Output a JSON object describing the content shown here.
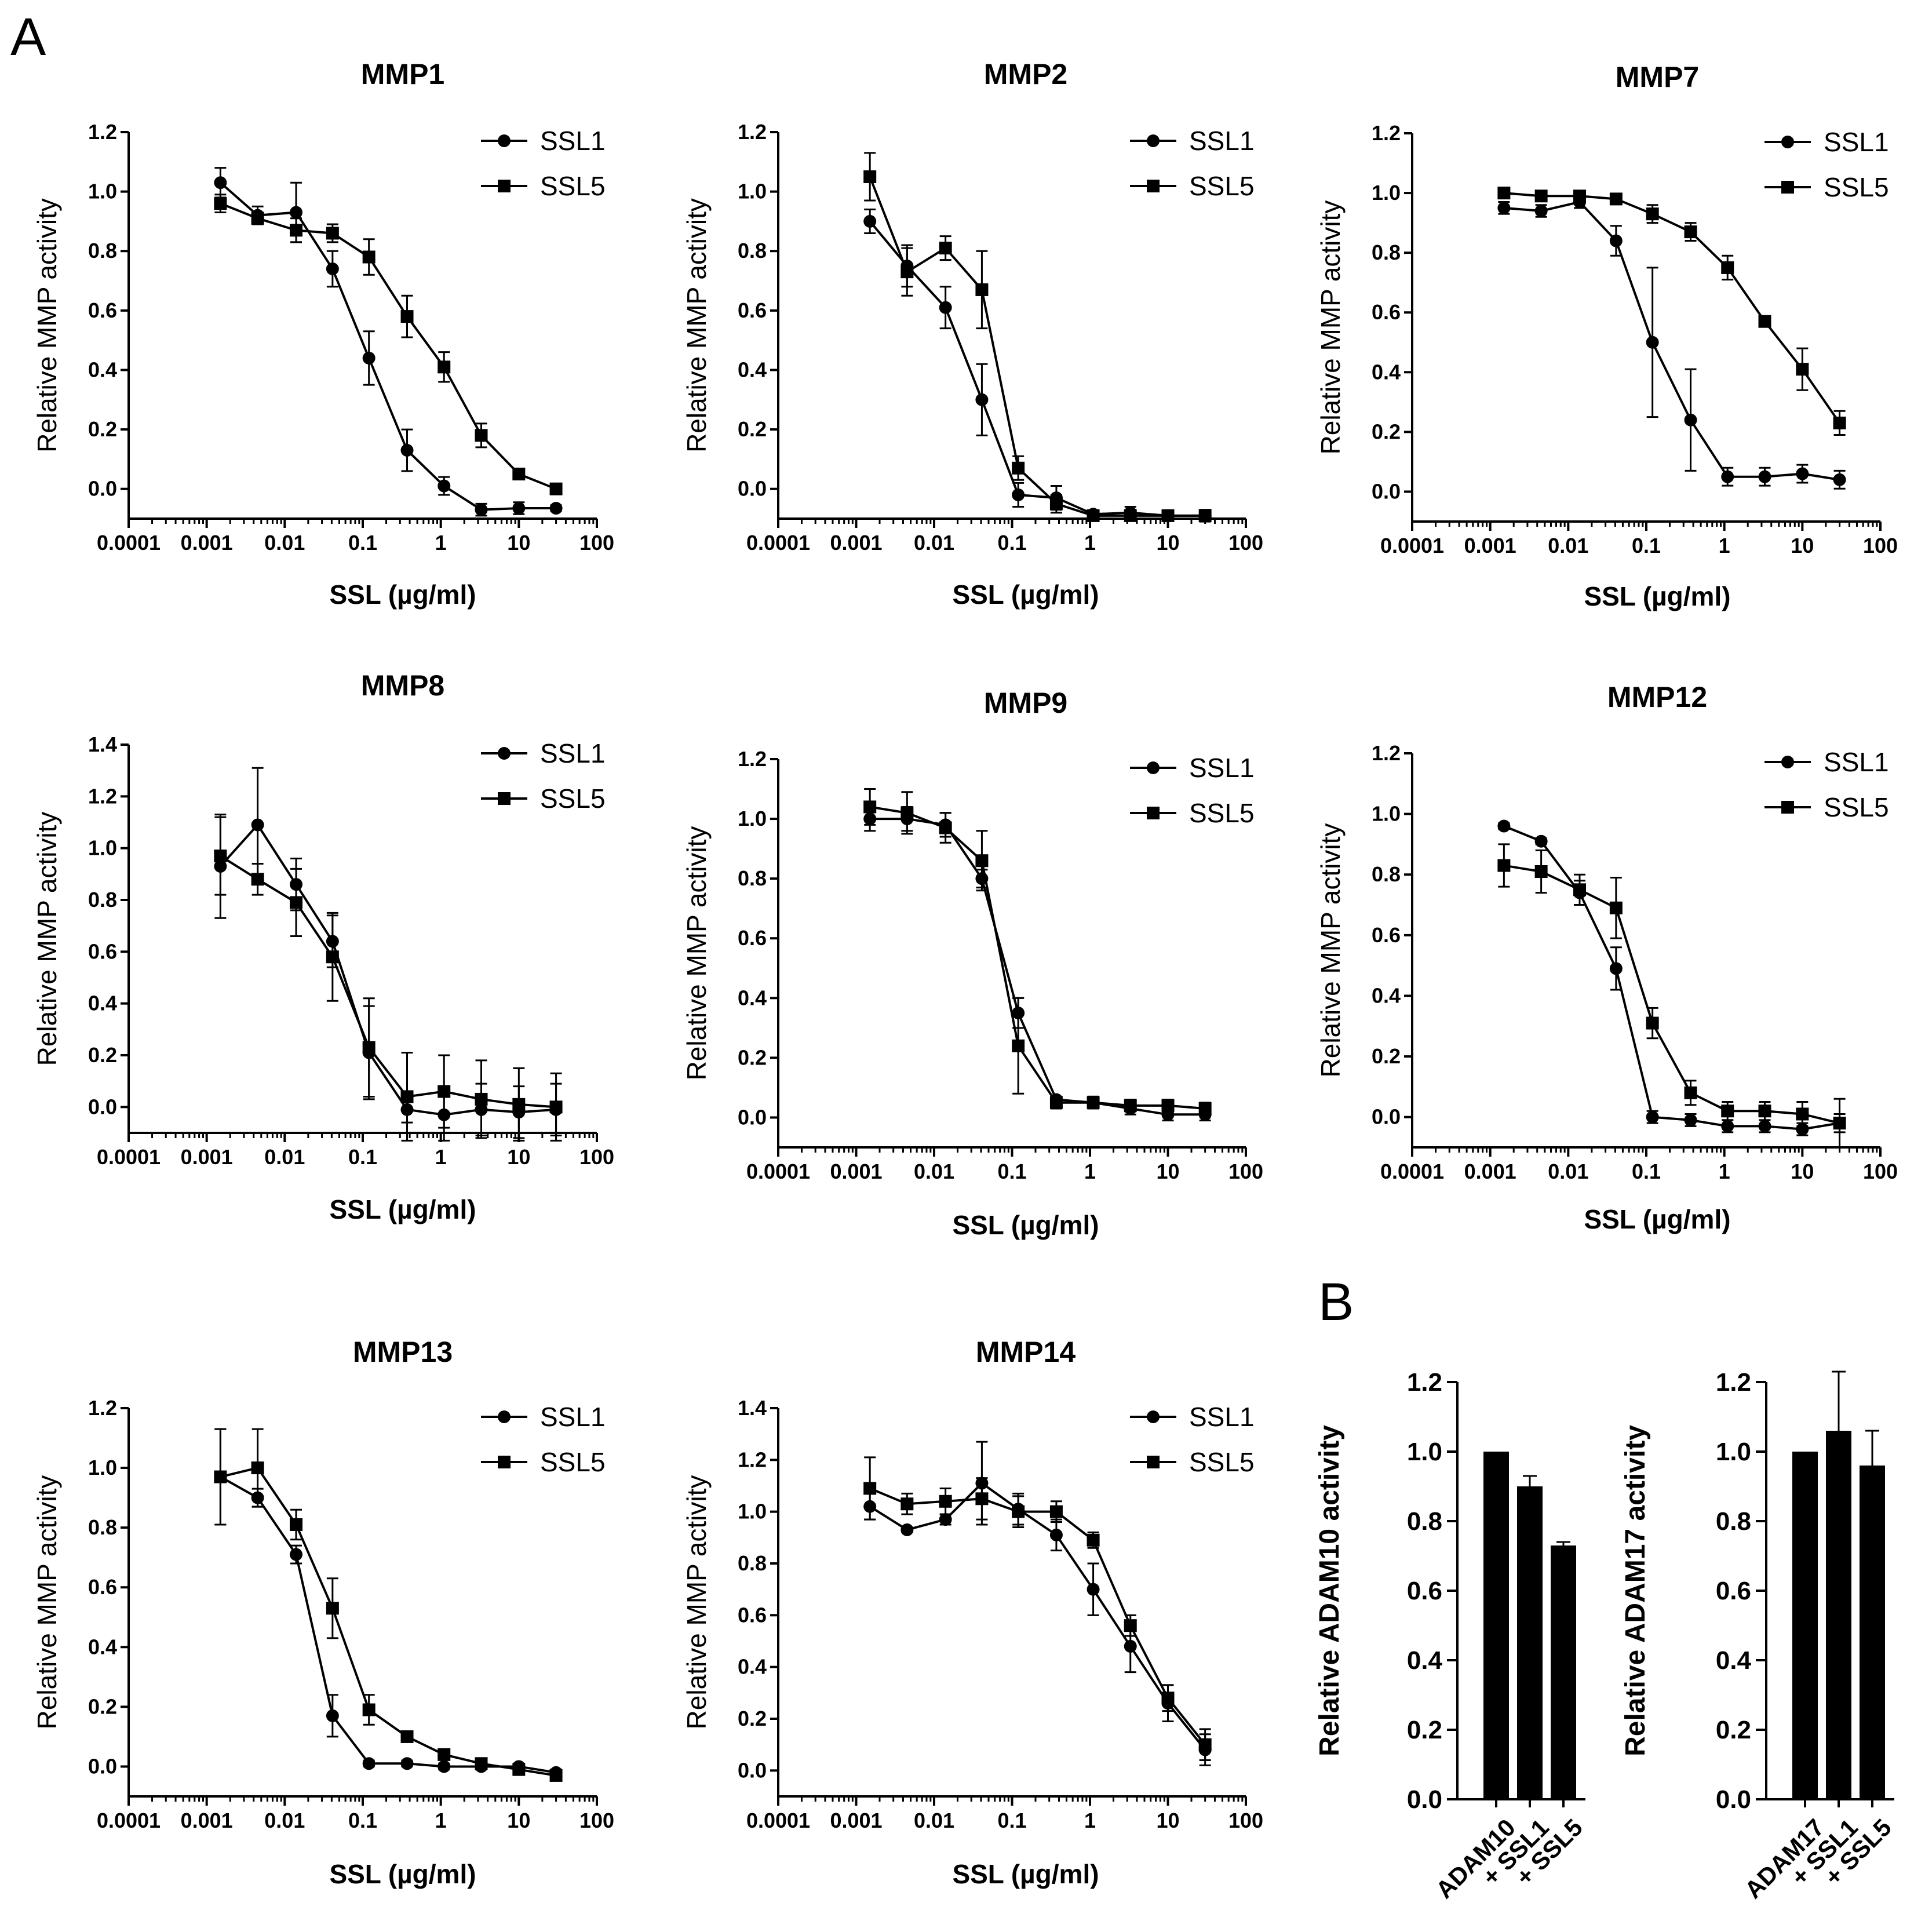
{
  "labels": {
    "panel_a": "A",
    "panel_b": "B"
  },
  "chart_data": [
    {
      "type": "line",
      "title": "MMP1",
      "xlabel": "SSL (µg/ml)",
      "ylabel": "Relative MMP activity",
      "xscale": "log",
      "xlim": [
        0.0001,
        100
      ],
      "ylim": [
        -0.1,
        1.2
      ],
      "yticks": [
        "1.2",
        "1.0",
        "0.8",
        "0.6",
        "0.4",
        "0.2",
        "0.0"
      ],
      "xticks": [
        "0.0001",
        "0.001",
        "0.01",
        "0.1",
        "1",
        "10",
        "100"
      ],
      "legend": "top-right",
      "x": [
        0.0015,
        0.0045,
        0.014,
        0.041,
        0.12,
        0.37,
        1.1,
        3.3,
        10,
        30
      ],
      "series": [
        {
          "name": "SSL1",
          "marker": "circle",
          "values": [
            1.03,
            0.92,
            0.93,
            0.74,
            0.44,
            0.13,
            0.01,
            -0.07,
            -0.065,
            -0.065
          ],
          "errors": [
            0.05,
            0.03,
            0.1,
            0.06,
            0.09,
            0.07,
            0.03,
            0.02,
            0.02,
            0.01
          ]
        },
        {
          "name": "SSL5",
          "marker": "square",
          "values": [
            0.96,
            0.91,
            0.87,
            0.86,
            0.78,
            0.58,
            0.41,
            0.18,
            0.05,
            0.0
          ],
          "errors": [
            0.03,
            0.02,
            0.04,
            0.03,
            0.06,
            0.07,
            0.05,
            0.04,
            0.01,
            0.01
          ]
        }
      ]
    },
    {
      "type": "line",
      "title": "MMP2",
      "xlabel": "SSL (µg/ml)",
      "ylabel": "Relative MMP activity",
      "xscale": "log",
      "xlim": [
        0.0001,
        100
      ],
      "ylim": [
        -0.1,
        1.2
      ],
      "yticks": [
        "1.2",
        "1.0",
        "0.8",
        "0.6",
        "0.4",
        "0.2",
        "0.0"
      ],
      "xticks": [
        "0.0001",
        "0.001",
        "0.01",
        "0.1",
        "1",
        "10",
        "100"
      ],
      "legend": "top-right",
      "x": [
        0.0015,
        0.0045,
        0.014,
        0.041,
        0.12,
        0.37,
        1.1,
        3.3,
        10,
        30
      ],
      "series": [
        {
          "name": "SSL1",
          "marker": "circle",
          "values": [
            0.9,
            0.75,
            0.61,
            0.3,
            -0.02,
            -0.03,
            -0.085,
            -0.08,
            -0.09,
            -0.09
          ],
          "errors": [
            0.04,
            0.07,
            0.07,
            0.12,
            0.04,
            0.04,
            0.01,
            0.02,
            0.01,
            0.02
          ]
        },
        {
          "name": "SSL5",
          "marker": "square",
          "values": [
            1.05,
            0.73,
            0.81,
            0.67,
            0.07,
            -0.05,
            -0.09,
            -0.09,
            -0.09,
            -0.09
          ],
          "errors": [
            0.08,
            0.08,
            0.04,
            0.13,
            0.04,
            0.03,
            0.01,
            0.01,
            0.01,
            0.01
          ]
        }
      ]
    },
    {
      "type": "line",
      "title": "MMP7",
      "xlabel": "SSL (µg/ml)",
      "ylabel": "Relative MMP activity",
      "xscale": "log",
      "xlim": [
        0.0001,
        100
      ],
      "ylim": [
        -0.1,
        1.2
      ],
      "yticks": [
        "1.2",
        "1.0",
        "0.8",
        "0.6",
        "0.4",
        "0.2",
        "0.0"
      ],
      "xticks": [
        "0.0001",
        "0.001",
        "0.01",
        "0.1",
        "1",
        "10",
        "100"
      ],
      "legend": "top-right",
      "x": [
        0.0015,
        0.0045,
        0.014,
        0.041,
        0.12,
        0.37,
        1.1,
        3.3,
        10,
        30
      ],
      "series": [
        {
          "name": "SSL1",
          "marker": "circle",
          "values": [
            0.95,
            0.94,
            0.97,
            0.84,
            0.5,
            0.24,
            0.05,
            0.05,
            0.06,
            0.04
          ],
          "errors": [
            0.02,
            0.02,
            0.02,
            0.05,
            0.25,
            0.17,
            0.03,
            0.03,
            0.03,
            0.03
          ]
        },
        {
          "name": "SSL5",
          "marker": "square",
          "values": [
            1.0,
            0.99,
            0.99,
            0.98,
            0.93,
            0.87,
            0.75,
            0.57,
            0.41,
            0.23
          ],
          "errors": [
            0.01,
            0.01,
            0.01,
            0.01,
            0.03,
            0.03,
            0.04,
            0.01,
            0.07,
            0.04
          ]
        }
      ]
    },
    {
      "type": "line",
      "title": "MMP8",
      "xlabel": "SSL (µg/ml)",
      "ylabel": "Relative MMP activity",
      "xscale": "log",
      "xlim": [
        0.0001,
        100
      ],
      "ylim": [
        -0.1,
        1.4
      ],
      "yticks": [
        "1.4",
        "1.2",
        "1.0",
        "0.8",
        "0.6",
        "0.4",
        "0.2",
        "0.0"
      ],
      "xticks": [
        "0.0001",
        "0.001",
        "0.01",
        "0.1",
        "1",
        "10",
        "100"
      ],
      "legend": "top-right",
      "x": [
        0.0015,
        0.0045,
        0.014,
        0.041,
        0.12,
        0.37,
        1.1,
        3.3,
        10,
        30
      ],
      "series": [
        {
          "name": "SSL1",
          "marker": "circle",
          "values": [
            0.93,
            1.09,
            0.86,
            0.64,
            0.21,
            -0.01,
            -0.03,
            -0.01,
            -0.02,
            -0.01
          ],
          "errors": [
            0.2,
            0.22,
            0.1,
            0.1,
            0.18,
            0.05,
            0.1,
            0.1,
            0.1,
            0.1
          ]
        },
        {
          "name": "SSL5",
          "marker": "square",
          "values": [
            0.97,
            0.88,
            0.79,
            0.58,
            0.23,
            0.04,
            0.06,
            0.03,
            0.01,
            0.0
          ],
          "errors": [
            0.15,
            0.06,
            0.13,
            0.17,
            0.19,
            0.17,
            0.14,
            0.15,
            0.14,
            0.13
          ]
        }
      ]
    },
    {
      "type": "line",
      "title": "MMP9",
      "xlabel": "SSL (µg/ml)",
      "ylabel": "Relative MMP activity",
      "xscale": "log",
      "xlim": [
        0.0001,
        100
      ],
      "ylim": [
        -0.1,
        1.2
      ],
      "yticks": [
        "1.2",
        "1.0",
        "0.8",
        "0.6",
        "0.4",
        "0.2",
        "0.0"
      ],
      "xticks": [
        "0.0001",
        "0.001",
        "0.01",
        "0.1",
        "1",
        "10",
        "100"
      ],
      "legend": "top-right",
      "x": [
        0.0015,
        0.0045,
        0.014,
        0.041,
        0.12,
        0.37,
        1.1,
        3.3,
        10,
        30
      ],
      "series": [
        {
          "name": "SSL1",
          "marker": "circle",
          "values": [
            1.0,
            1.0,
            0.98,
            0.8,
            0.35,
            0.06,
            0.05,
            0.03,
            0.01,
            0.01
          ],
          "errors": [
            0.04,
            0.04,
            0.04,
            0.03,
            0.05,
            0.01,
            0.02,
            0.02,
            0.02,
            0.02
          ]
        },
        {
          "name": "SSL5",
          "marker": "square",
          "values": [
            1.04,
            1.02,
            0.97,
            0.86,
            0.24,
            0.05,
            0.05,
            0.04,
            0.04,
            0.03
          ],
          "errors": [
            0.06,
            0.07,
            0.05,
            0.1,
            0.16,
            0.02,
            0.02,
            0.02,
            0.02,
            0.02
          ]
        }
      ]
    },
    {
      "type": "line",
      "title": "MMP12",
      "xlabel": "SSL (µg/ml)",
      "ylabel": "Relative MMP activity",
      "xscale": "log",
      "xlim": [
        0.0001,
        100
      ],
      "ylim": [
        -0.1,
        1.2
      ],
      "yticks": [
        "1.2",
        "1.0",
        "0.8",
        "0.6",
        "0.4",
        "0.2",
        "0.0"
      ],
      "xticks": [
        "0.0001",
        "0.001",
        "0.01",
        "0.1",
        "1",
        "10",
        "100"
      ],
      "legend": "top-right",
      "x": [
        0.0015,
        0.0045,
        0.014,
        0.041,
        0.12,
        0.37,
        1.1,
        3.3,
        10,
        30
      ],
      "series": [
        {
          "name": "SSL1",
          "marker": "circle",
          "values": [
            0.96,
            0.91,
            0.74,
            0.49,
            0.0,
            -0.01,
            -0.03,
            -0.03,
            -0.04,
            -0.02
          ],
          "errors": [
            0.01,
            0.01,
            0.04,
            0.07,
            0.02,
            0.02,
            0.02,
            0.02,
            0.02,
            0.03
          ]
        },
        {
          "name": "SSL5",
          "marker": "square",
          "values": [
            0.83,
            0.81,
            0.75,
            0.69,
            0.31,
            0.08,
            0.02,
            0.02,
            0.01,
            -0.02
          ],
          "errors": [
            0.07,
            0.07,
            0.05,
            0.1,
            0.05,
            0.04,
            0.03,
            0.03,
            0.04,
            0.08
          ]
        }
      ]
    },
    {
      "type": "line",
      "title": "MMP13",
      "xlabel": "SSL (µg/ml)",
      "ylabel": "Relative MMP activity",
      "xscale": "log",
      "xlim": [
        0.0001,
        100
      ],
      "ylim": [
        -0.1,
        1.2
      ],
      "yticks": [
        "1.2",
        "1.0",
        "0.8",
        "0.6",
        "0.4",
        "0.2",
        "0.0"
      ],
      "xticks": [
        "0.0001",
        "0.001",
        "0.01",
        "0.1",
        "1",
        "10",
        "100"
      ],
      "legend": "top-right",
      "x": [
        0.0015,
        0.0045,
        0.014,
        0.041,
        0.12,
        0.37,
        1.1,
        3.3,
        10,
        30
      ],
      "series": [
        {
          "name": "SSL1",
          "marker": "circle",
          "values": [
            0.97,
            0.9,
            0.71,
            0.17,
            0.01,
            0.01,
            0.0,
            0.0,
            0.0,
            -0.02
          ],
          "errors": [
            0.16,
            0.03,
            0.03,
            0.07,
            0.01,
            0.01,
            0.01,
            0.01,
            0.01,
            0.01
          ]
        },
        {
          "name": "SSL5",
          "marker": "square",
          "values": [
            0.97,
            1.0,
            0.81,
            0.53,
            0.19,
            0.1,
            0.04,
            0.01,
            -0.01,
            -0.03
          ],
          "errors": [
            0.16,
            0.13,
            0.05,
            0.1,
            0.05,
            0.01,
            0.01,
            0.01,
            0.01,
            0.01
          ]
        }
      ]
    },
    {
      "type": "line",
      "title": "MMP14",
      "xlabel": "SSL (µg/ml)",
      "ylabel": "Relative MMP activity",
      "xscale": "log",
      "xlim": [
        0.0001,
        100
      ],
      "ylim": [
        -0.1,
        1.4
      ],
      "yticks": [
        "1.4",
        "1.2",
        "1.0",
        "0.8",
        "0.6",
        "0.4",
        "0.2",
        "0.0"
      ],
      "xticks": [
        "0.0001",
        "0.001",
        "0.01",
        "0.1",
        "1",
        "10",
        "100"
      ],
      "legend": "top-right",
      "x": [
        0.0015,
        0.0045,
        0.014,
        0.041,
        0.12,
        0.37,
        1.1,
        3.3,
        10,
        30
      ],
      "series": [
        {
          "name": "SSL1",
          "marker": "circle",
          "values": [
            1.02,
            0.93,
            0.97,
            1.11,
            1.01,
            0.91,
            0.7,
            0.48,
            0.26,
            0.08
          ],
          "errors": [
            0.05,
            0.01,
            0.02,
            0.16,
            0.06,
            0.06,
            0.1,
            0.1,
            0.07,
            0.06
          ]
        },
        {
          "name": "SSL5",
          "marker": "square",
          "values": [
            1.09,
            1.03,
            1.04,
            1.05,
            1.0,
            1.0,
            0.89,
            0.56,
            0.28,
            0.1
          ],
          "errors": [
            0.12,
            0.04,
            0.05,
            0.08,
            0.06,
            0.04,
            0.03,
            0.04,
            0.05,
            0.06
          ]
        }
      ]
    },
    {
      "type": "bar",
      "title": "",
      "xlabel": "",
      "ylabel": "Relative ADAM10 activity",
      "ylim": [
        0,
        1.2
      ],
      "yticks": [
        "1.2",
        "1.0",
        "0.8",
        "0.6",
        "0.4",
        "0.2",
        "0.0"
      ],
      "categories": [
        "ADAM10",
        "+ SSL1",
        "+ SSL5"
      ],
      "values": [
        1.0,
        0.9,
        0.73
      ],
      "errors": [
        0.0,
        0.03,
        0.01
      ]
    },
    {
      "type": "bar",
      "title": "",
      "xlabel": "",
      "ylabel": "Relative ADAM17 activity",
      "ylim": [
        0,
        1.2
      ],
      "yticks": [
        "1.2",
        "1.0",
        "0.8",
        "0.6",
        "0.4",
        "0.2",
        "0.0"
      ],
      "categories": [
        "ADAM17",
        "+ SSL1",
        "+ SSL5"
      ],
      "values": [
        1.0,
        1.06,
        0.96
      ],
      "errors": [
        0.0,
        0.17,
        0.1
      ]
    }
  ]
}
